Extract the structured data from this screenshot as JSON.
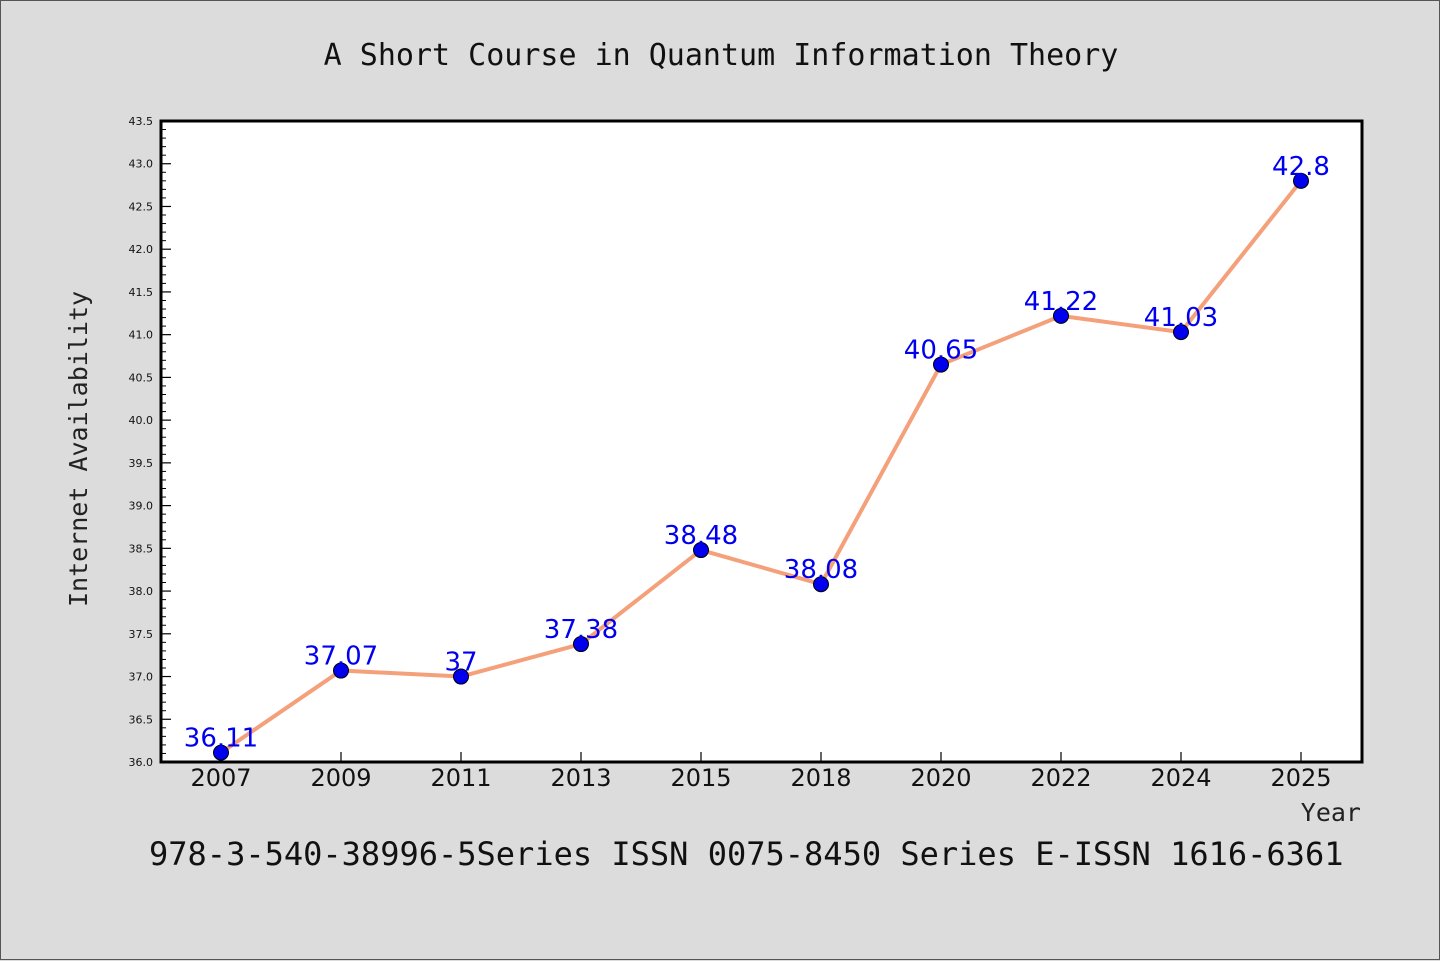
{
  "chart_data": {
    "type": "line",
    "title": "A Short Course in Quantum Information Theory",
    "xlabel": "Year",
    "ylabel": "Internet Availability",
    "categories": [
      "2007",
      "2009",
      "2011",
      "2013",
      "2015",
      "2018",
      "2020",
      "2022",
      "2024",
      "2025"
    ],
    "series": [
      {
        "values": [
          36.11,
          37.07,
          37,
          37.38,
          38.48,
          38.08,
          40.65,
          41.22,
          41.03,
          42.8
        ],
        "data_labels": [
          "36.11",
          "37.07",
          "37",
          "37.38",
          "38.48",
          "38.08",
          "40.65",
          "41.22",
          "41.03",
          "42.8"
        ],
        "line_color": "#f4a07a",
        "marker_color": "#0000ee"
      }
    ],
    "ylim": [
      36.0,
      43.5
    ],
    "yticks": [
      "36.0",
      "36.5",
      "37.0",
      "37.5",
      "38.0",
      "38.5",
      "39.0",
      "39.5",
      "40.0",
      "40.5",
      "41.0",
      "41.5",
      "42.0",
      "42.5",
      "43.0",
      "43.5"
    ],
    "grid": false,
    "legend": "none",
    "label_color": "#0000ee"
  },
  "footer": {
    "text": "978-3-540-38996-5Series ISSN 0075-8450 Series E-ISSN 1616-6361"
  }
}
